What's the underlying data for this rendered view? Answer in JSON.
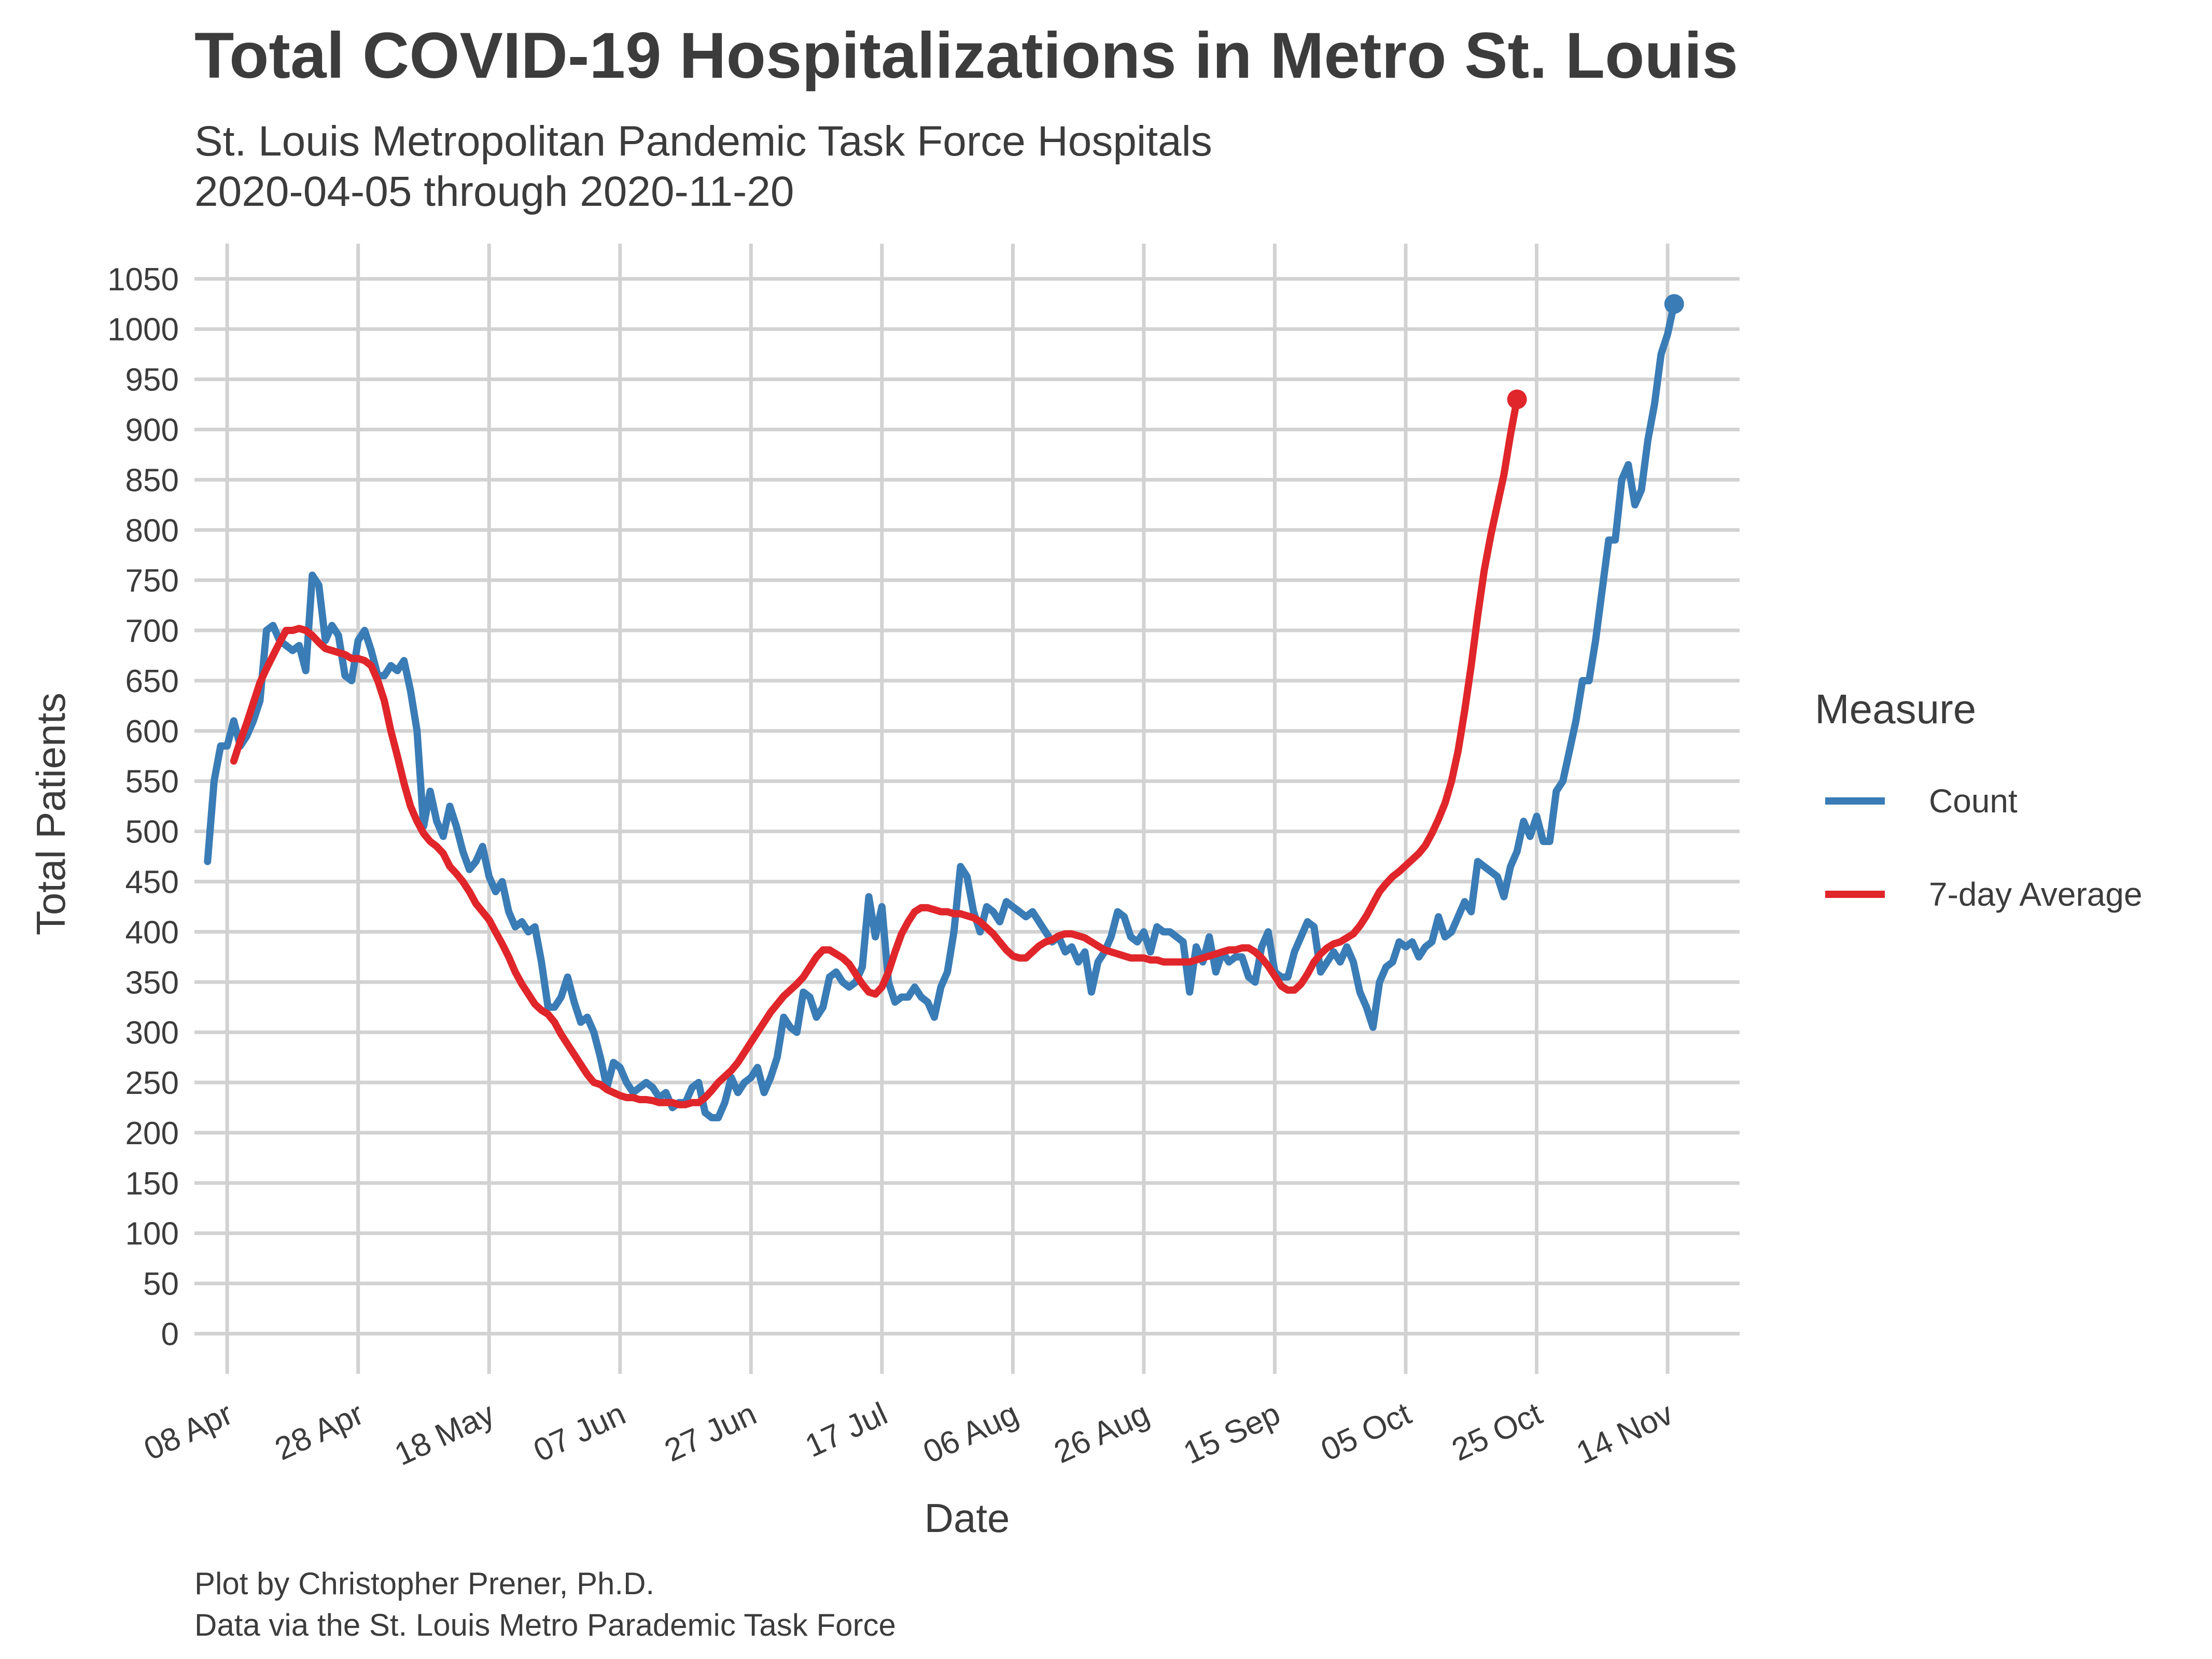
{
  "chart_data": {
    "type": "line",
    "title": "Total COVID-19 Hospitalizations in Metro St. Louis",
    "subtitle_line1": "St. Louis Metropolitan Pandemic Task Force Hospitals",
    "subtitle_line2": "2020-04-05 through 2020-11-20",
    "xlabel": "Date",
    "ylabel": "Total Patients",
    "caption_line1": "Plot by Christopher Prener, Ph.D.",
    "caption_line2": "Data via the St. Louis Metro Parademic Task Force",
    "xlim": [
      "2020-04-03",
      "2020-11-25"
    ],
    "ylim": [
      -40,
      1085
    ],
    "y_ticks": [
      0,
      50,
      100,
      150,
      200,
      250,
      300,
      350,
      400,
      450,
      500,
      550,
      600,
      650,
      700,
      750,
      800,
      850,
      900,
      950,
      1000,
      1050
    ],
    "x_ticks": [
      {
        "date": "2020-04-08",
        "label": "08 Apr"
      },
      {
        "date": "2020-04-28",
        "label": "28 Apr"
      },
      {
        "date": "2020-05-18",
        "label": "18 May"
      },
      {
        "date": "2020-06-07",
        "label": "07 Jun"
      },
      {
        "date": "2020-06-27",
        "label": "27 Jun"
      },
      {
        "date": "2020-07-17",
        "label": "17 Jul"
      },
      {
        "date": "2020-08-06",
        "label": "06 Aug"
      },
      {
        "date": "2020-08-26",
        "label": "26 Aug"
      },
      {
        "date": "2020-09-15",
        "label": "15 Sep"
      },
      {
        "date": "2020-10-05",
        "label": "05 Oct"
      },
      {
        "date": "2020-10-25",
        "label": "25 Oct"
      },
      {
        "date": "2020-11-14",
        "label": "14 Nov"
      }
    ],
    "grid": true,
    "legend": {
      "title": "Measure",
      "position": "right",
      "entries": [
        {
          "label": "Count",
          "color": "#3a7cb6"
        },
        {
          "label": "7-day Average",
          "color": "#e0262a"
        }
      ]
    },
    "series": [
      {
        "name": "Count",
        "color": "#3a7cb6",
        "start_date": "2020-04-05",
        "values": [
          470,
          550,
          585,
          585,
          610,
          585,
          595,
          610,
          630,
          700,
          705,
          690,
          685,
          680,
          685,
          660,
          755,
          745,
          690,
          705,
          695,
          655,
          650,
          690,
          700,
          680,
          655,
          655,
          665,
          660,
          670,
          640,
          600,
          505,
          540,
          510,
          495,
          525,
          505,
          480,
          462,
          470,
          485,
          455,
          440,
          450,
          420,
          405,
          410,
          400,
          405,
          370,
          325,
          325,
          335,
          355,
          330,
          310,
          315,
          300,
          275,
          245,
          270,
          265,
          250,
          240,
          245,
          250,
          245,
          235,
          240,
          225,
          230,
          230,
          245,
          250,
          220,
          215,
          215,
          230,
          255,
          240,
          250,
          255,
          265,
          240,
          255,
          275,
          315,
          305,
          300,
          340,
          335,
          315,
          325,
          355,
          360,
          350,
          345,
          350,
          365,
          435,
          395,
          425,
          350,
          330,
          335,
          335,
          345,
          335,
          330,
          315,
          345,
          360,
          400,
          465,
          455,
          420,
          400,
          425,
          420,
          410,
          430,
          425,
          420,
          415,
          420,
          410,
          400,
          390,
          395,
          380,
          385,
          370,
          380,
          340,
          370,
          380,
          395,
          420,
          415,
          395,
          390,
          400,
          380,
          405,
          400,
          400,
          395,
          390,
          340,
          385,
          370,
          395,
          360,
          380,
          370,
          375,
          375,
          355,
          350,
          385,
          400,
          360,
          355,
          355,
          380,
          395,
          410,
          405,
          360,
          370,
          380,
          370,
          385,
          370,
          340,
          325,
          305,
          350,
          365,
          370,
          390,
          385,
          390,
          375,
          385,
          390,
          415,
          395,
          400,
          415,
          430,
          420,
          470,
          465,
          460,
          455,
          435,
          465,
          480,
          510,
          495,
          515,
          490,
          490,
          540,
          550,
          580,
          610,
          650,
          650,
          690,
          740,
          790,
          790,
          850,
          865,
          825,
          840,
          890,
          925,
          975,
          995,
          1025
        ]
      },
      {
        "name": "7-day Average",
        "color": "#e0262a",
        "start_date": "2020-04-09",
        "values": [
          570,
          590,
          608,
          628,
          648,
          662,
          675,
          688,
          700,
          700,
          702,
          700,
          695,
          688,
          682,
          680,
          678,
          676,
          672,
          672,
          670,
          665,
          650,
          630,
          600,
          575,
          548,
          525,
          510,
          498,
          490,
          485,
          478,
          465,
          458,
          450,
          440,
          428,
          420,
          412,
          400,
          388,
          375,
          360,
          348,
          338,
          328,
          322,
          318,
          310,
          298,
          288,
          278,
          268,
          258,
          250,
          248,
          243,
          240,
          237,
          235,
          235,
          233,
          233,
          232,
          230,
          230,
          230,
          228,
          228,
          230,
          230,
          235,
          242,
          250,
          256,
          262,
          270,
          280,
          290,
          300,
          310,
          320,
          328,
          336,
          342,
          348,
          355,
          365,
          375,
          382,
          382,
          378,
          374,
          368,
          358,
          348,
          340,
          338,
          345,
          360,
          380,
          398,
          410,
          420,
          424,
          424,
          422,
          420,
          420,
          418,
          418,
          416,
          414,
          410,
          404,
          398,
          390,
          382,
          376,
          374,
          374,
          380,
          386,
          390,
          392,
          396,
          398,
          398,
          396,
          394,
          390,
          386,
          382,
          380,
          378,
          376,
          374,
          374,
          374,
          372,
          372,
          370,
          370,
          370,
          370,
          370,
          372,
          374,
          376,
          378,
          380,
          382,
          382,
          384,
          384,
          380,
          374,
          366,
          356,
          346,
          342,
          342,
          348,
          358,
          370,
          378,
          384,
          388,
          390,
          394,
          398,
          406,
          416,
          428,
          440,
          448,
          455,
          460,
          466,
          472,
          478,
          486,
          498,
          512,
          528,
          550,
          580,
          620,
          665,
          715,
          760,
          795,
          825,
          855,
          895,
          930
        ]
      }
    ]
  }
}
